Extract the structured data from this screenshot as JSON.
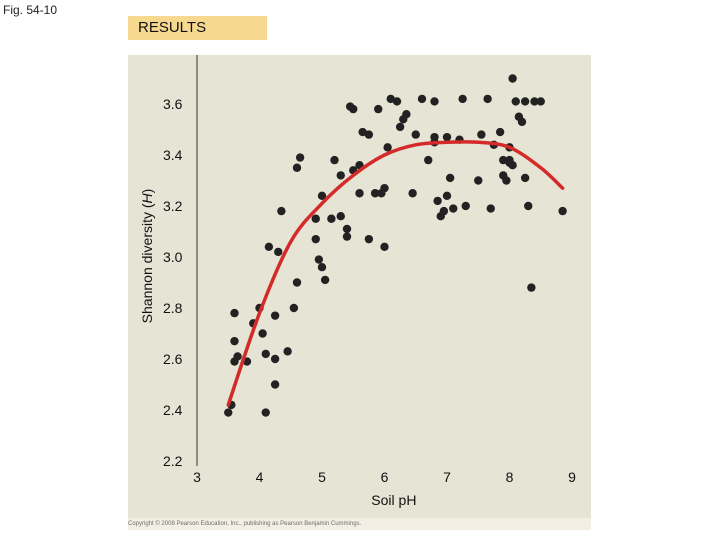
{
  "figure_label": "Fig. 54-10",
  "results_label": "RESULTS",
  "copyright": "Copyright © 2008 Pearson Education, Inc., publishing as Pearson Benjamin Cummings.",
  "colors": {
    "panel_bg": "#e6e4d4",
    "points": "#222222",
    "curve": "#d42a2a",
    "tag_bg": "#f7d88f"
  },
  "chart_data": {
    "type": "scatter",
    "title": "",
    "xlabel": "Soil pH",
    "ylabel": "Shannon diversity (H)",
    "xlim": [
      3,
      9
    ],
    "ylim": [
      2.2,
      3.8
    ],
    "xticks": [
      "3",
      "4",
      "5",
      "6",
      "7",
      "8",
      "9"
    ],
    "yticks": [
      "2.2",
      "2.4",
      "2.6",
      "2.8",
      "3.0",
      "3.2",
      "3.4",
      "3.6"
    ],
    "grid": false,
    "series": [
      {
        "kind": "points",
        "x": [
          3.5,
          3.55,
          3.6,
          3.6,
          3.6,
          3.65,
          3.8,
          3.9,
          4.0,
          4.05,
          4.1,
          4.1,
          4.15,
          4.25,
          4.25,
          4.25,
          4.3,
          4.35,
          4.45,
          4.55,
          4.6,
          4.6,
          4.65,
          4.9,
          4.9,
          4.95,
          5.0,
          5.0,
          5.05,
          5.15,
          5.2,
          5.3,
          5.3,
          5.4,
          5.4,
          5.45,
          5.5,
          5.5,
          5.6,
          5.6,
          5.65,
          5.75,
          5.75,
          5.85,
          5.9,
          5.95,
          6.0,
          6.0,
          6.05,
          6.1,
          6.2,
          6.25,
          6.3,
          6.35,
          6.45,
          6.5,
          6.6,
          6.7,
          6.8,
          6.8,
          6.8,
          6.85,
          6.9,
          6.95,
          7.0,
          7.0,
          7.05,
          7.1,
          7.2,
          7.25,
          7.3,
          7.5,
          7.55,
          7.65,
          7.7,
          7.75,
          7.85,
          7.9,
          7.9,
          7.95,
          8.0,
          8.0,
          8.0,
          8.05,
          8.05,
          8.1,
          8.15,
          8.2,
          8.25,
          8.25,
          8.3,
          8.35,
          8.4,
          8.5,
          8.85
        ],
        "y": [
          2.39,
          2.42,
          2.59,
          2.67,
          2.78,
          2.61,
          2.59,
          2.74,
          2.8,
          2.7,
          2.62,
          2.39,
          3.04,
          2.77,
          2.6,
          2.5,
          3.02,
          3.18,
          2.63,
          2.8,
          2.9,
          3.35,
          3.39,
          3.07,
          3.15,
          2.99,
          2.96,
          3.24,
          2.91,
          3.15,
          3.38,
          3.32,
          3.16,
          3.08,
          3.11,
          3.59,
          3.34,
          3.58,
          3.36,
          3.25,
          3.49,
          3.48,
          3.07,
          3.25,
          3.58,
          3.25,
          3.27,
          3.04,
          3.43,
          3.62,
          3.61,
          3.51,
          3.54,
          3.56,
          3.25,
          3.48,
          3.62,
          3.38,
          3.45,
          3.47,
          3.61,
          3.22,
          3.16,
          3.18,
          3.47,
          3.24,
          3.31,
          3.19,
          3.46,
          3.62,
          3.2,
          3.3,
          3.48,
          3.62,
          3.19,
          3.44,
          3.49,
          3.38,
          3.32,
          3.3,
          3.38,
          3.43,
          3.37,
          3.36,
          3.7,
          3.61,
          3.55,
          3.53,
          3.61,
          3.31,
          3.2,
          2.88,
          3.61,
          3.61,
          3.18
        ]
      },
      {
        "kind": "fitted_curve",
        "x": [
          3.5,
          4.0,
          4.5,
          5.0,
          5.5,
          6.0,
          6.5,
          7.0,
          7.5,
          8.0,
          8.5,
          8.85
        ],
        "y": [
          2.42,
          2.78,
          3.06,
          3.21,
          3.32,
          3.4,
          3.44,
          3.45,
          3.45,
          3.43,
          3.35,
          3.27
        ]
      }
    ]
  }
}
